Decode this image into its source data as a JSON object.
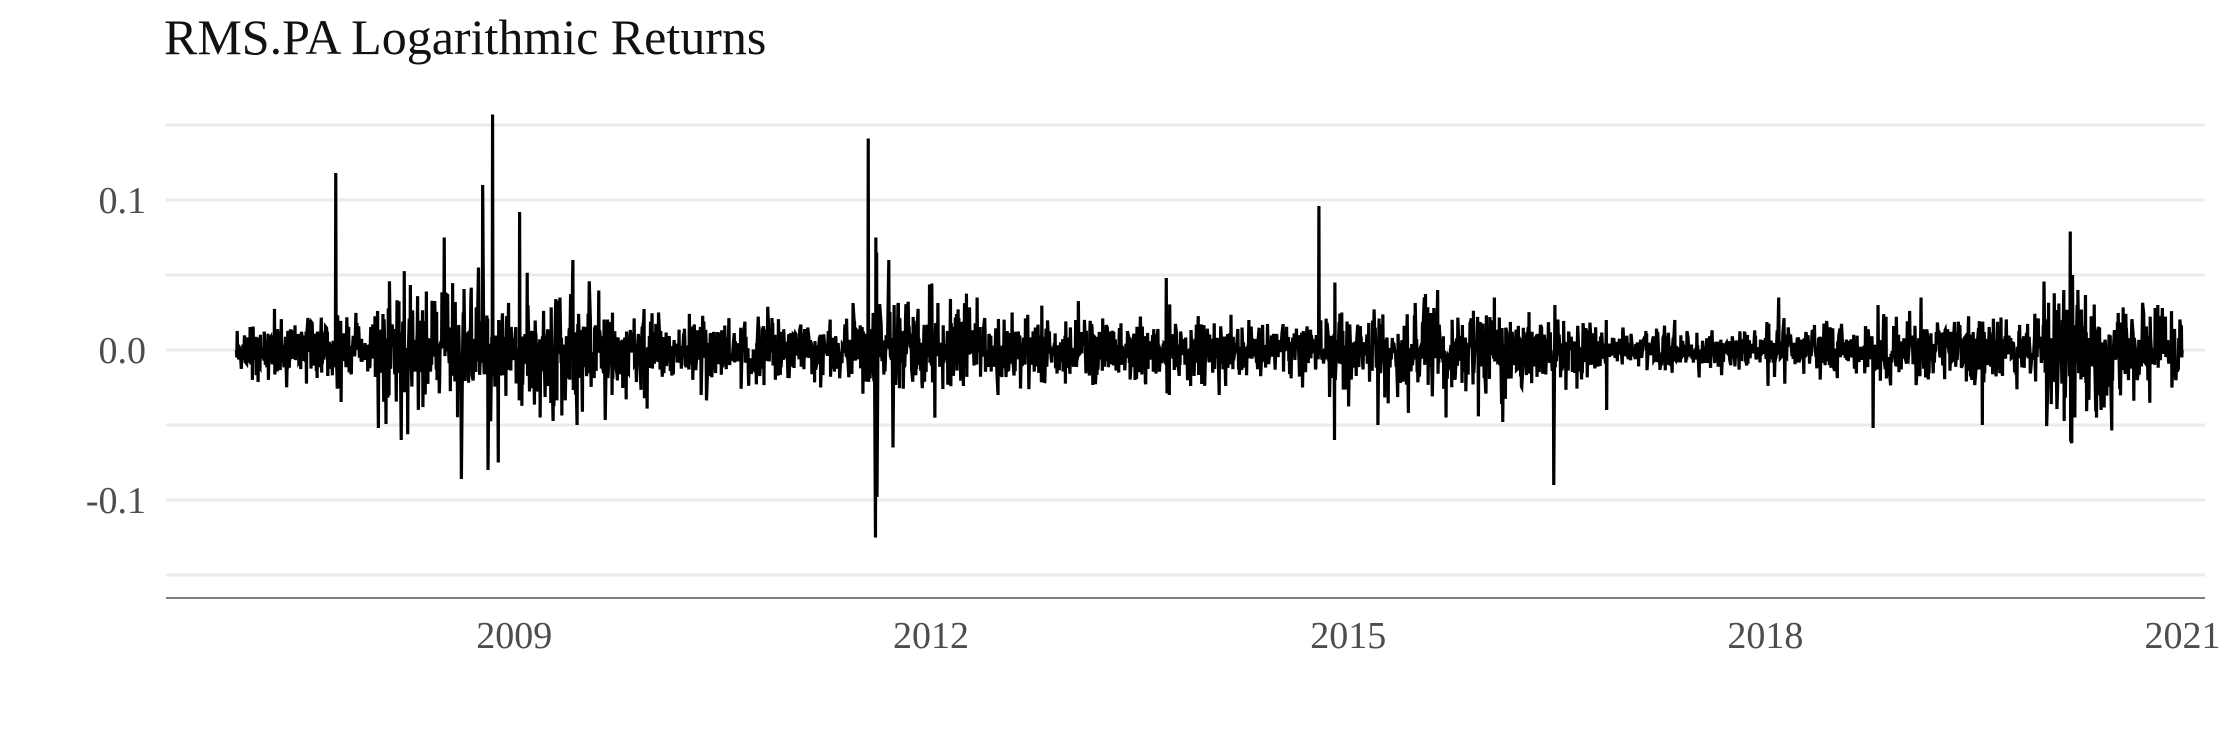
{
  "chart_data": {
    "type": "line",
    "title": "RMS.PA Logarithmic Returns",
    "xlabel": "",
    "ylabel": "",
    "x_range": [
      "2006-07-01",
      "2021-03-01"
    ],
    "ylim": [
      -0.16,
      0.15
    ],
    "x_ticks": [
      {
        "value": "2009-01-01",
        "label": "2009"
      },
      {
        "value": "2012-01-01",
        "label": "2012"
      },
      {
        "value": "2015-01-01",
        "label": "2015"
      },
      {
        "value": "2018-01-01",
        "label": "2018"
      },
      {
        "value": "2021-01-01",
        "label": "2021"
      }
    ],
    "y_ticks": [
      {
        "value": 0.1,
        "label": "0.1"
      },
      {
        "value": 0.0,
        "label": "0.0"
      },
      {
        "value": -0.1,
        "label": "-0.1"
      }
    ],
    "y_minor_gridlines": [
      0.15,
      0.05,
      -0.05,
      -0.15
    ],
    "grid": true,
    "legend": "none",
    "line_color": "#000000",
    "series": [
      {
        "x": [
          "2007-01-02",
          "2007-06-01",
          "2007-09-20",
          "2008-01-10",
          "2008-04-01",
          "2008-07-01",
          "2008-08-15",
          "2008-09-29",
          "2008-10-10",
          "2008-10-24",
          "2008-11-05",
          "2008-11-20",
          "2009-01-15",
          "2009-03-10",
          "2009-05-01",
          "2009-06-15",
          "2009-08-01",
          "2009-09-15",
          "2010-01-15",
          "2010-05-07",
          "2010-08-01",
          "2011-03-17",
          "2011-07-20",
          "2011-08-08",
          "2011-08-09",
          "2011-08-10",
          "2011-08-11",
          "2011-08-12",
          "2011-08-22",
          "2011-09-12",
          "2011-09-23",
          "2011-10-06",
          "2012-05-01",
          "2012-06-25",
          "2012-08-01",
          "2013-01-15",
          "2013-06-20",
          "2013-09-10",
          "2014-01-27",
          "2014-04-15",
          "2014-10-16",
          "2014-11-26",
          "2014-11-27",
          "2014-11-28",
          "2014-12-15",
          "2015-03-20",
          "2015-08-24",
          "2015-09-15",
          "2016-01-20",
          "2016-02-11",
          "2016-06-24",
          "2016-06-27",
          "2016-11-09",
          "2016-11-10",
          "2017-05-08",
          "2018-02-05",
          "2018-10-11",
          "2018-10-24",
          "2019-02-14",
          "2019-07-25",
          "2020-02-24",
          "2020-03-12",
          "2020-03-13",
          "2020-03-16",
          "2020-03-18",
          "2020-03-24",
          "2020-04-01",
          "2020-05-10",
          "2020-06-01",
          "2020-10-28",
          "2020-11-09",
          "2020-12-31"
        ],
        "y": [
          0.0,
          0.01,
          0.118,
          -0.052,
          0.02,
          0.075,
          -0.086,
          0.055,
          0.11,
          -0.08,
          0.157,
          -0.075,
          0.092,
          -0.045,
          0.035,
          -0.05,
          0.03,
          -0.03,
          0.025,
          -0.03,
          0.03,
          -0.025,
          0.141,
          -0.125,
          0.075,
          -0.05,
          0.065,
          -0.098,
          0.02,
          0.06,
          -0.065,
          0.03,
          0.035,
          -0.03,
          0.025,
          0.02,
          -0.02,
          0.048,
          -0.03,
          0.02,
          0.096,
          -0.06,
          0.045,
          -0.02,
          0.025,
          -0.05,
          0.04,
          -0.045,
          0.035,
          -0.048,
          -0.09,
          0.03,
          0.02,
          -0.04,
          0.02,
          0.035,
          -0.052,
          0.03,
          0.035,
          -0.05,
          0.04,
          0.079,
          -0.06,
          -0.062,
          0.05,
          -0.045,
          0.04,
          0.03,
          -0.04,
          0.03,
          0.028,
          0.0
        ]
      }
    ]
  }
}
